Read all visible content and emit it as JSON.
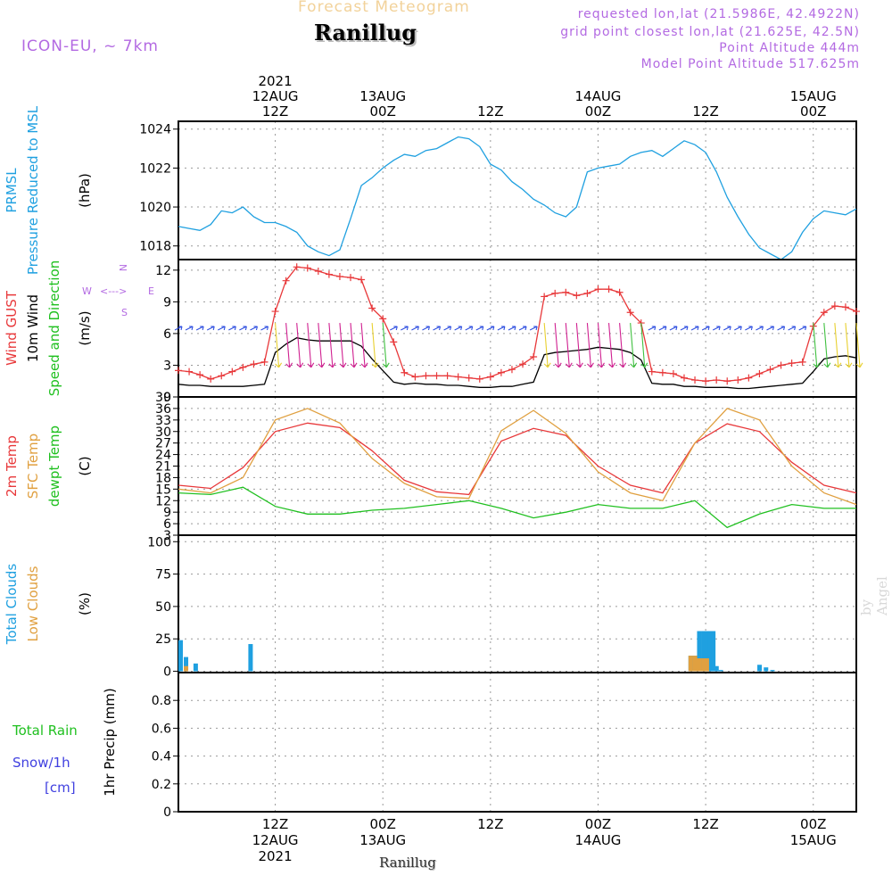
{
  "header": {
    "title": "Forecast Meteogram",
    "station": "Ranillug",
    "model": "ICON-EU, ~ 7km",
    "requested": "requested lon,lat (21.5986E, 42.4922N)",
    "grid_point": "grid point closest lon,lat (21.625E, 42.5N)",
    "point_altitude": "Point Altitude 444m",
    "model_altitude": "Model Point Altitude 517.625m",
    "credit": "by Angel"
  },
  "footer": {
    "station": "Ranillug"
  },
  "colors": {
    "pressure": "#1fa0e0",
    "gust": "#e8383a",
    "wind": "#000000",
    "temp": "#e8383a",
    "sfc_temp": "#e0a040",
    "dewpt": "#20c020",
    "total_clouds": "#1fa0e0",
    "low_clouds": "#e0a040",
    "rain": "#20c020",
    "snow": "#4040e0",
    "axis_label_purple": "#b36ae2"
  },
  "chart_data": {
    "type": "line",
    "time_axis": {
      "start_hour": 0,
      "end_hour": 63,
      "unit": "hours after 2021-08-12 03Z",
      "top_labels": [
        {
          "hour": 9,
          "lines": [
            "2021",
            "12AUG",
            "12Z"
          ]
        },
        {
          "hour": 19,
          "lines": [
            "13AUG",
            "00Z"
          ]
        },
        {
          "hour": 29,
          "lines": [
            "12Z"
          ]
        },
        {
          "hour": 39,
          "lines": [
            "14AUG",
            "00Z"
          ]
        },
        {
          "hour": 49,
          "lines": [
            "12Z"
          ]
        },
        {
          "hour": 59,
          "lines": [
            "15AUG",
            "00Z"
          ]
        }
      ],
      "bottom_labels": [
        {
          "hour": 9,
          "lines": [
            "12Z",
            "12AUG",
            "2021"
          ]
        },
        {
          "hour": 19,
          "lines": [
            "00Z",
            "13AUG"
          ]
        },
        {
          "hour": 29,
          "lines": [
            "12Z"
          ]
        },
        {
          "hour": 39,
          "lines": [
            "00Z",
            "14AUG"
          ]
        },
        {
          "hour": 49,
          "lines": [
            "12Z"
          ]
        },
        {
          "hour": 59,
          "lines": [
            "00Z",
            "15AUG"
          ]
        }
      ]
    },
    "panels": [
      {
        "id": "pressure",
        "type": "line",
        "ylim": [
          1017.3,
          1024.4
        ],
        "yticks": [
          1018,
          1020,
          1022,
          1024
        ],
        "ylabels": [
          {
            "text": "PRMSL",
            "color": "#1fa0e0"
          },
          {
            "text": "Pressure Reduced to MSL",
            "color": "#1fa0e0"
          },
          {
            "text": "(hPa)",
            "color": "#000000"
          }
        ],
        "series": [
          {
            "name": "PRMSL",
            "color": "#1fa0e0",
            "x": [
              0,
              1,
              2,
              3,
              4,
              5,
              6,
              7,
              8,
              9,
              10,
              11,
              12,
              13,
              14,
              15,
              16,
              17,
              18,
              19,
              20,
              21,
              22,
              23,
              24,
              25,
              26,
              27,
              28,
              29,
              30,
              31,
              32,
              33,
              34,
              35,
              36,
              37,
              38,
              39,
              40,
              41,
              42,
              43,
              44,
              45,
              46,
              47,
              48,
              49,
              50,
              51,
              52,
              53,
              54,
              55,
              56,
              57,
              58,
              59,
              60,
              61,
              62,
              63
            ],
            "values": [
              1019.0,
              1018.9,
              1018.8,
              1019.1,
              1019.8,
              1019.7,
              1020.0,
              1019.5,
              1019.2,
              1019.2,
              1019.0,
              1018.7,
              1018.0,
              1017.7,
              1017.5,
              1017.8,
              1019.4,
              1021.1,
              1021.5,
              1022.0,
              1022.4,
              1022.7,
              1022.6,
              1022.9,
              1023.0,
              1023.3,
              1023.6,
              1023.5,
              1023.1,
              1022.2,
              1021.9,
              1021.3,
              1020.9,
              1020.4,
              1020.1,
              1019.7,
              1019.5,
              1020.0,
              1021.8,
              1022.0,
              1022.1,
              1022.2,
              1022.6,
              1022.8,
              1022.9,
              1022.6,
              1023.0,
              1023.4,
              1023.2,
              1022.8,
              1021.8,
              1020.5,
              1019.5,
              1018.6,
              1017.9,
              1017.6,
              1017.3,
              1017.7,
              1018.7,
              1019.4,
              1019.8,
              1019.7,
              1019.6,
              1019.9
            ]
          }
        ]
      },
      {
        "id": "wind",
        "type": "line",
        "ylim": [
          0,
          13
        ],
        "yticks": [
          0,
          3,
          6,
          9,
          12
        ],
        "ylabels": [
          {
            "text": "Wind GUST",
            "color": "#e8383a"
          },
          {
            "text": "10m Wind",
            "color": "#000000"
          },
          {
            "text": "Speed and Direction",
            "color": "#20c020"
          },
          {
            "text": "(m/s)",
            "color": "#000000"
          }
        ],
        "compass": {
          "n": "N",
          "s": "S",
          "w": "W",
          "e": "E",
          "color": "#b36ae2"
        },
        "series": [
          {
            "name": "Wind GUST",
            "color": "#e8383a",
            "marker": "+",
            "x": [
              0,
              1,
              2,
              3,
              4,
              5,
              6,
              7,
              8,
              9,
              10,
              11,
              12,
              13,
              14,
              15,
              16,
              17,
              18,
              19,
              20,
              21,
              22,
              23,
              24,
              25,
              26,
              27,
              28,
              29,
              30,
              31,
              32,
              33,
              34,
              35,
              36,
              37,
              38,
              39,
              40,
              41,
              42,
              43,
              44,
              45,
              46,
              47,
              48,
              49,
              50,
              51,
              52,
              53,
              54,
              55,
              56,
              57,
              58,
              59,
              60,
              61,
              62,
              63
            ],
            "values": [
              2.5,
              2.4,
              2.1,
              1.7,
              2.0,
              2.4,
              2.8,
              3.1,
              3.3,
              8.1,
              11.0,
              12.3,
              12.2,
              11.9,
              11.6,
              11.4,
              11.3,
              11.1,
              8.4,
              7.4,
              5.2,
              2.3,
              1.9,
              2.0,
              2.0,
              2.0,
              1.9,
              1.8,
              1.7,
              1.9,
              2.3,
              2.6,
              3.1,
              3.8,
              9.5,
              9.8,
              9.9,
              9.6,
              9.8,
              10.2,
              10.2,
              9.9,
              8.0,
              7.0,
              2.4,
              2.3,
              2.2,
              1.8,
              1.6,
              1.5,
              1.6,
              1.5,
              1.6,
              1.8,
              2.2,
              2.6,
              3.0,
              3.2,
              3.3,
              6.7,
              8.0,
              8.6,
              8.5,
              8.1
            ]
          },
          {
            "name": "10m Wind",
            "color": "#000000",
            "x": [
              0,
              1,
              2,
              3,
              4,
              5,
              6,
              7,
              8,
              9,
              10,
              11,
              12,
              13,
              14,
              15,
              16,
              17,
              18,
              19,
              20,
              21,
              22,
              23,
              24,
              25,
              26,
              27,
              28,
              29,
              30,
              31,
              32,
              33,
              34,
              35,
              36,
              37,
              38,
              39,
              40,
              41,
              42,
              43,
              44,
              45,
              46,
              47,
              48,
              49,
              50,
              51,
              52,
              53,
              54,
              55,
              56,
              57,
              58,
              59,
              60,
              61,
              62,
              63
            ],
            "values": [
              1.2,
              1.1,
              1.1,
              1.0,
              1.0,
              1.0,
              1.0,
              1.1,
              1.2,
              4.2,
              5.0,
              5.6,
              5.4,
              5.3,
              5.3,
              5.3,
              5.3,
              4.8,
              3.6,
              2.5,
              1.4,
              1.2,
              1.3,
              1.2,
              1.2,
              1.1,
              1.1,
              1.0,
              0.9,
              0.9,
              1.0,
              1.0,
              1.2,
              1.4,
              4.0,
              4.2,
              4.3,
              4.4,
              4.5,
              4.7,
              4.6,
              4.5,
              4.2,
              3.5,
              1.3,
              1.2,
              1.2,
              1.0,
              1.0,
              0.9,
              0.9,
              0.9,
              0.8,
              0.8,
              0.9,
              1.0,
              1.1,
              1.2,
              1.3,
              2.4,
              3.6,
              3.8,
              3.9,
              3.7
            ]
          }
        ]
      },
      {
        "id": "temperature",
        "type": "line",
        "ylim": [
          3,
          39
        ],
        "yticks": [
          3,
          6,
          9,
          12,
          15,
          18,
          21,
          24,
          27,
          30,
          33,
          36,
          39
        ],
        "ylabels": [
          {
            "text": "2m Temp",
            "color": "#e8383a"
          },
          {
            "text": "SFC Temp",
            "color": "#e0a040"
          },
          {
            "text": "dewpt Temp",
            "color": "#20c020"
          },
          {
            "text": "(C)",
            "color": "#000000"
          }
        ],
        "series": [
          {
            "name": "2m Temp",
            "color": "#e8383a",
            "x": [
              0,
              3,
              6,
              9,
              12,
              15,
              18,
              21,
              24,
              27,
              30,
              33,
              36,
              39,
              42,
              45,
              48,
              51,
              54,
              57,
              60,
              63
            ],
            "values": [
              16,
              15.2,
              20.6,
              30,
              32.2,
              31,
              25,
              17.3,
              14.3,
              13.6,
              27.5,
              30.8,
              29,
              21,
              16,
              14,
              27,
              32,
              30,
              22,
              16,
              14
            ]
          },
          {
            "name": "SFC Temp",
            "color": "#e0a040",
            "x": [
              0,
              3,
              6,
              9,
              12,
              15,
              18,
              21,
              24,
              27,
              30,
              33,
              36,
              39,
              42,
              45,
              48,
              51,
              54,
              57,
              60,
              63
            ],
            "values": [
              15,
              14,
              18,
              33,
              36,
              32.2,
              23,
              16.5,
              13,
              12.6,
              30.2,
              35.5,
              29.5,
              19.5,
              14,
              12,
              27,
              36,
              33,
              21,
              14,
              11
            ]
          },
          {
            "name": "dewpt Temp",
            "color": "#20c020",
            "x": [
              0,
              3,
              6,
              9,
              12,
              15,
              18,
              21,
              24,
              27,
              30,
              33,
              36,
              39,
              42,
              45,
              48,
              51,
              54,
              57,
              60,
              63
            ],
            "values": [
              14,
              13.6,
              15.5,
              10.5,
              8.5,
              8.5,
              9.5,
              10,
              11,
              12,
              10,
              7.5,
              9,
              11,
              10,
              10,
              12,
              5,
              8.5,
              11,
              10,
              10
            ]
          }
        ]
      },
      {
        "id": "clouds",
        "type": "bar",
        "ylim": [
          -1,
          105
        ],
        "yticks": [
          0,
          25,
          50,
          75,
          100
        ],
        "ylabels": [
          {
            "text": "Total Clouds",
            "color": "#1fa0e0"
          },
          {
            "text": "Low Clouds",
            "color": "#e0a040"
          },
          {
            "text": "(%)",
            "color": "#000000"
          }
        ],
        "series": [
          {
            "name": "Total Clouds",
            "color": "#1fa0e0",
            "x": [
              0,
              0.5,
              1.4,
              6.5,
              47.4,
              47.8,
              48.2,
              48.6,
              48.9,
              49.2,
              49.5,
              49.8,
              50.2,
              53.8,
              54.4,
              55.0
            ],
            "values": [
              24,
              11,
              6,
              21,
              12,
              12,
              31,
              31,
              31,
              31,
              31,
              4,
              1,
              5,
              3,
              1
            ]
          },
          {
            "name": "Low Clouds",
            "color": "#e0a040",
            "x": [
              0.5,
              47.4,
              47.8,
              48.2,
              48.6,
              48.9
            ],
            "values": [
              4,
              12,
              12,
              10,
              10,
              10
            ]
          }
        ]
      },
      {
        "id": "precip",
        "type": "bar",
        "ylim": [
          0,
          1.0
        ],
        "yticks": [
          0,
          0.2,
          0.4,
          0.6,
          0.8
        ],
        "ylabels": [
          {
            "text": "1hr Precip (mm)",
            "color": "#000000"
          }
        ],
        "left_labels": [
          {
            "text": "Total Rain",
            "color": "#20c020"
          },
          {
            "text": "Snow/1h",
            "color": "#4040e0"
          },
          {
            "text": "[cm]",
            "color": "#4040e0"
          }
        ],
        "series": []
      }
    ]
  }
}
